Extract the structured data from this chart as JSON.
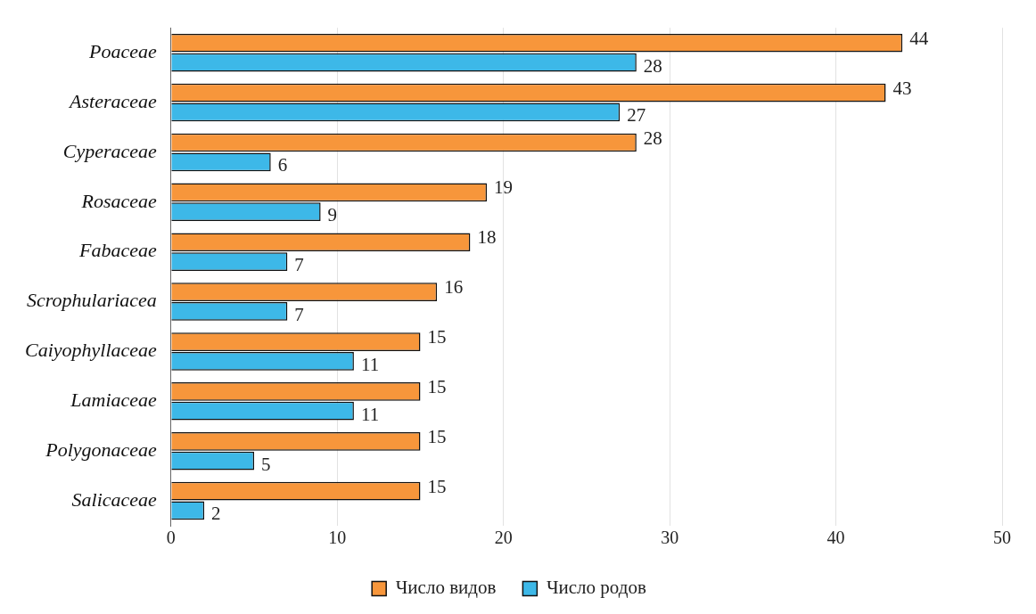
{
  "chart_data": {
    "type": "bar",
    "orientation": "horizontal",
    "categories": [
      "Poaceae",
      "Asteraceae",
      "Cyperaceae",
      "Rosaceae",
      "Fabaceae",
      "Scrophulariacea",
      "Caiyophyllaceae",
      "Lamiaceae",
      "Polygonaceae",
      "Salicaceae"
    ],
    "series": [
      {
        "name": "Число видов",
        "color": "#f7963b",
        "values": [
          44,
          43,
          28,
          19,
          18,
          16,
          15,
          15,
          15,
          15
        ]
      },
      {
        "name": "Число родов",
        "color": "#3db8e8",
        "values": [
          28,
          27,
          6,
          9,
          7,
          7,
          11,
          11,
          5,
          2
        ]
      }
    ],
    "xlim": [
      0,
      50
    ],
    "xticks": [
      0,
      10,
      20,
      30,
      40,
      50
    ],
    "grid": "x",
    "legend": "bottom",
    "data_labels": true
  }
}
